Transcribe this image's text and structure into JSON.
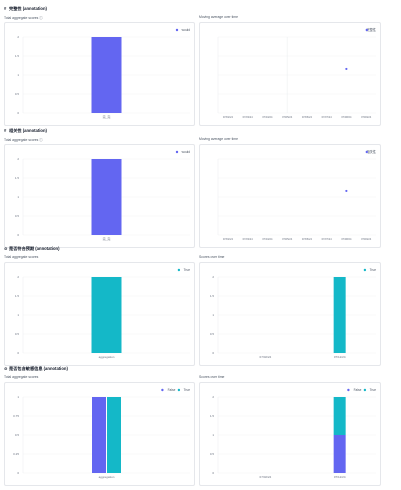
{
  "accent_color": "#6366f1",
  "teal_color": "#14b8c8",
  "sections": [
    {
      "title": "完整性 (annotation)",
      "title_icon": "hash-icon",
      "left_label": "Total aggregate scores ⓘ",
      "right_label": "Moving average over time",
      "left_chart": {
        "type": "bar",
        "legend": [
          "would"
        ],
        "categories": [
          "完_完"
        ],
        "series": [
          {
            "name": "would",
            "values": [
              2
            ]
          }
        ],
        "yticks": [
          "2",
          "1.5",
          "1",
          "0.5",
          "0"
        ],
        "ylim": [
          0,
          2
        ]
      },
      "right_chart": {
        "type": "scatter",
        "legend": [
          "完整性"
        ],
        "xticks": [
          "07/02/24",
          "07/03/24",
          "07/04/24",
          "07/05/24",
          "07/06/24",
          "07/07/24",
          "07/08/24",
          "07/09/24"
        ],
        "yticks": [
          "",
          "",
          "",
          "",
          ""
        ],
        "points": [
          {
            "x": 6,
            "y": 2
          }
        ],
        "vline_x": 3
      }
    },
    {
      "title": "相关性 (annotation)",
      "title_icon": "hash-icon",
      "left_label": "Total aggregate scores ⓘ",
      "right_label": "Moving average over time",
      "left_chart": {
        "type": "bar",
        "legend": [
          "would"
        ],
        "categories": [
          "完_完"
        ],
        "series": [
          {
            "name": "would",
            "values": [
              2
            ]
          }
        ],
        "yticks": [
          "2",
          "1.5",
          "1",
          "0.5",
          "0"
        ],
        "ylim": [
          0,
          2
        ]
      },
      "right_chart": {
        "type": "scatter",
        "legend": [
          "相关性"
        ],
        "xticks": [
          "07/02/24",
          "07/03/24",
          "07/04/24",
          "07/05/24",
          "07/06/24",
          "07/07/24",
          "07/08/24",
          "07/09/24"
        ],
        "yticks": [
          "",
          "",
          "",
          "",
          ""
        ],
        "points": [
          {
            "x": 6,
            "y": 2
          }
        ],
        "vline_x": null
      }
    },
    {
      "title": "是否符合预期 (annotation)",
      "title_icon": "check-circle-icon",
      "left_label": "Total aggregate scores",
      "right_label": "Scores over time",
      "left_chart": {
        "type": "bar",
        "legend": [
          "True"
        ],
        "categories": [
          "aggregation"
        ],
        "series": [
          {
            "name": "True",
            "values": [
              2
            ]
          }
        ],
        "yticks": [
          "2",
          "1.5",
          "1",
          "0.5",
          "0"
        ],
        "ylim": [
          0,
          2
        ]
      },
      "right_chart": {
        "type": "bar",
        "legend": [
          "True"
        ],
        "categories": [
          "07/02/24",
          "07/12/24"
        ],
        "series": [
          {
            "name": "True",
            "values": [
              0,
              2
            ]
          }
        ],
        "yticks": [
          "2",
          "1.5",
          "1",
          "0.5",
          "0"
        ],
        "ylim": [
          0,
          2
        ]
      }
    },
    {
      "title": "是否包含敏感信息 (annotation)",
      "title_icon": "check-circle-icon",
      "left_label": "Total aggregate scores",
      "right_label": "Scores over time",
      "left_chart": {
        "type": "bar",
        "legend": [
          "False",
          "True"
        ],
        "categories": [
          "aggregation"
        ],
        "series": [
          {
            "name": "False",
            "values": [
              1
            ]
          },
          {
            "name": "True",
            "values": [
              1
            ]
          }
        ],
        "yticks": [
          "1",
          "0.75",
          "0.5",
          "0.25",
          "0"
        ],
        "ylim": [
          0,
          1
        ],
        "grouped": true
      },
      "right_chart": {
        "type": "bar",
        "legend": [
          "False",
          "True"
        ],
        "categories": [
          "07/02/24",
          "07/12/24"
        ],
        "series": [
          {
            "name": "False",
            "values": [
              0,
              1
            ]
          },
          {
            "name": "True",
            "values": [
              0,
              1
            ]
          }
        ],
        "yticks": [
          "2",
          "1.5",
          "1",
          "0.5",
          "0"
        ],
        "ylim": [
          0,
          2
        ],
        "stacked": true
      }
    }
  ]
}
